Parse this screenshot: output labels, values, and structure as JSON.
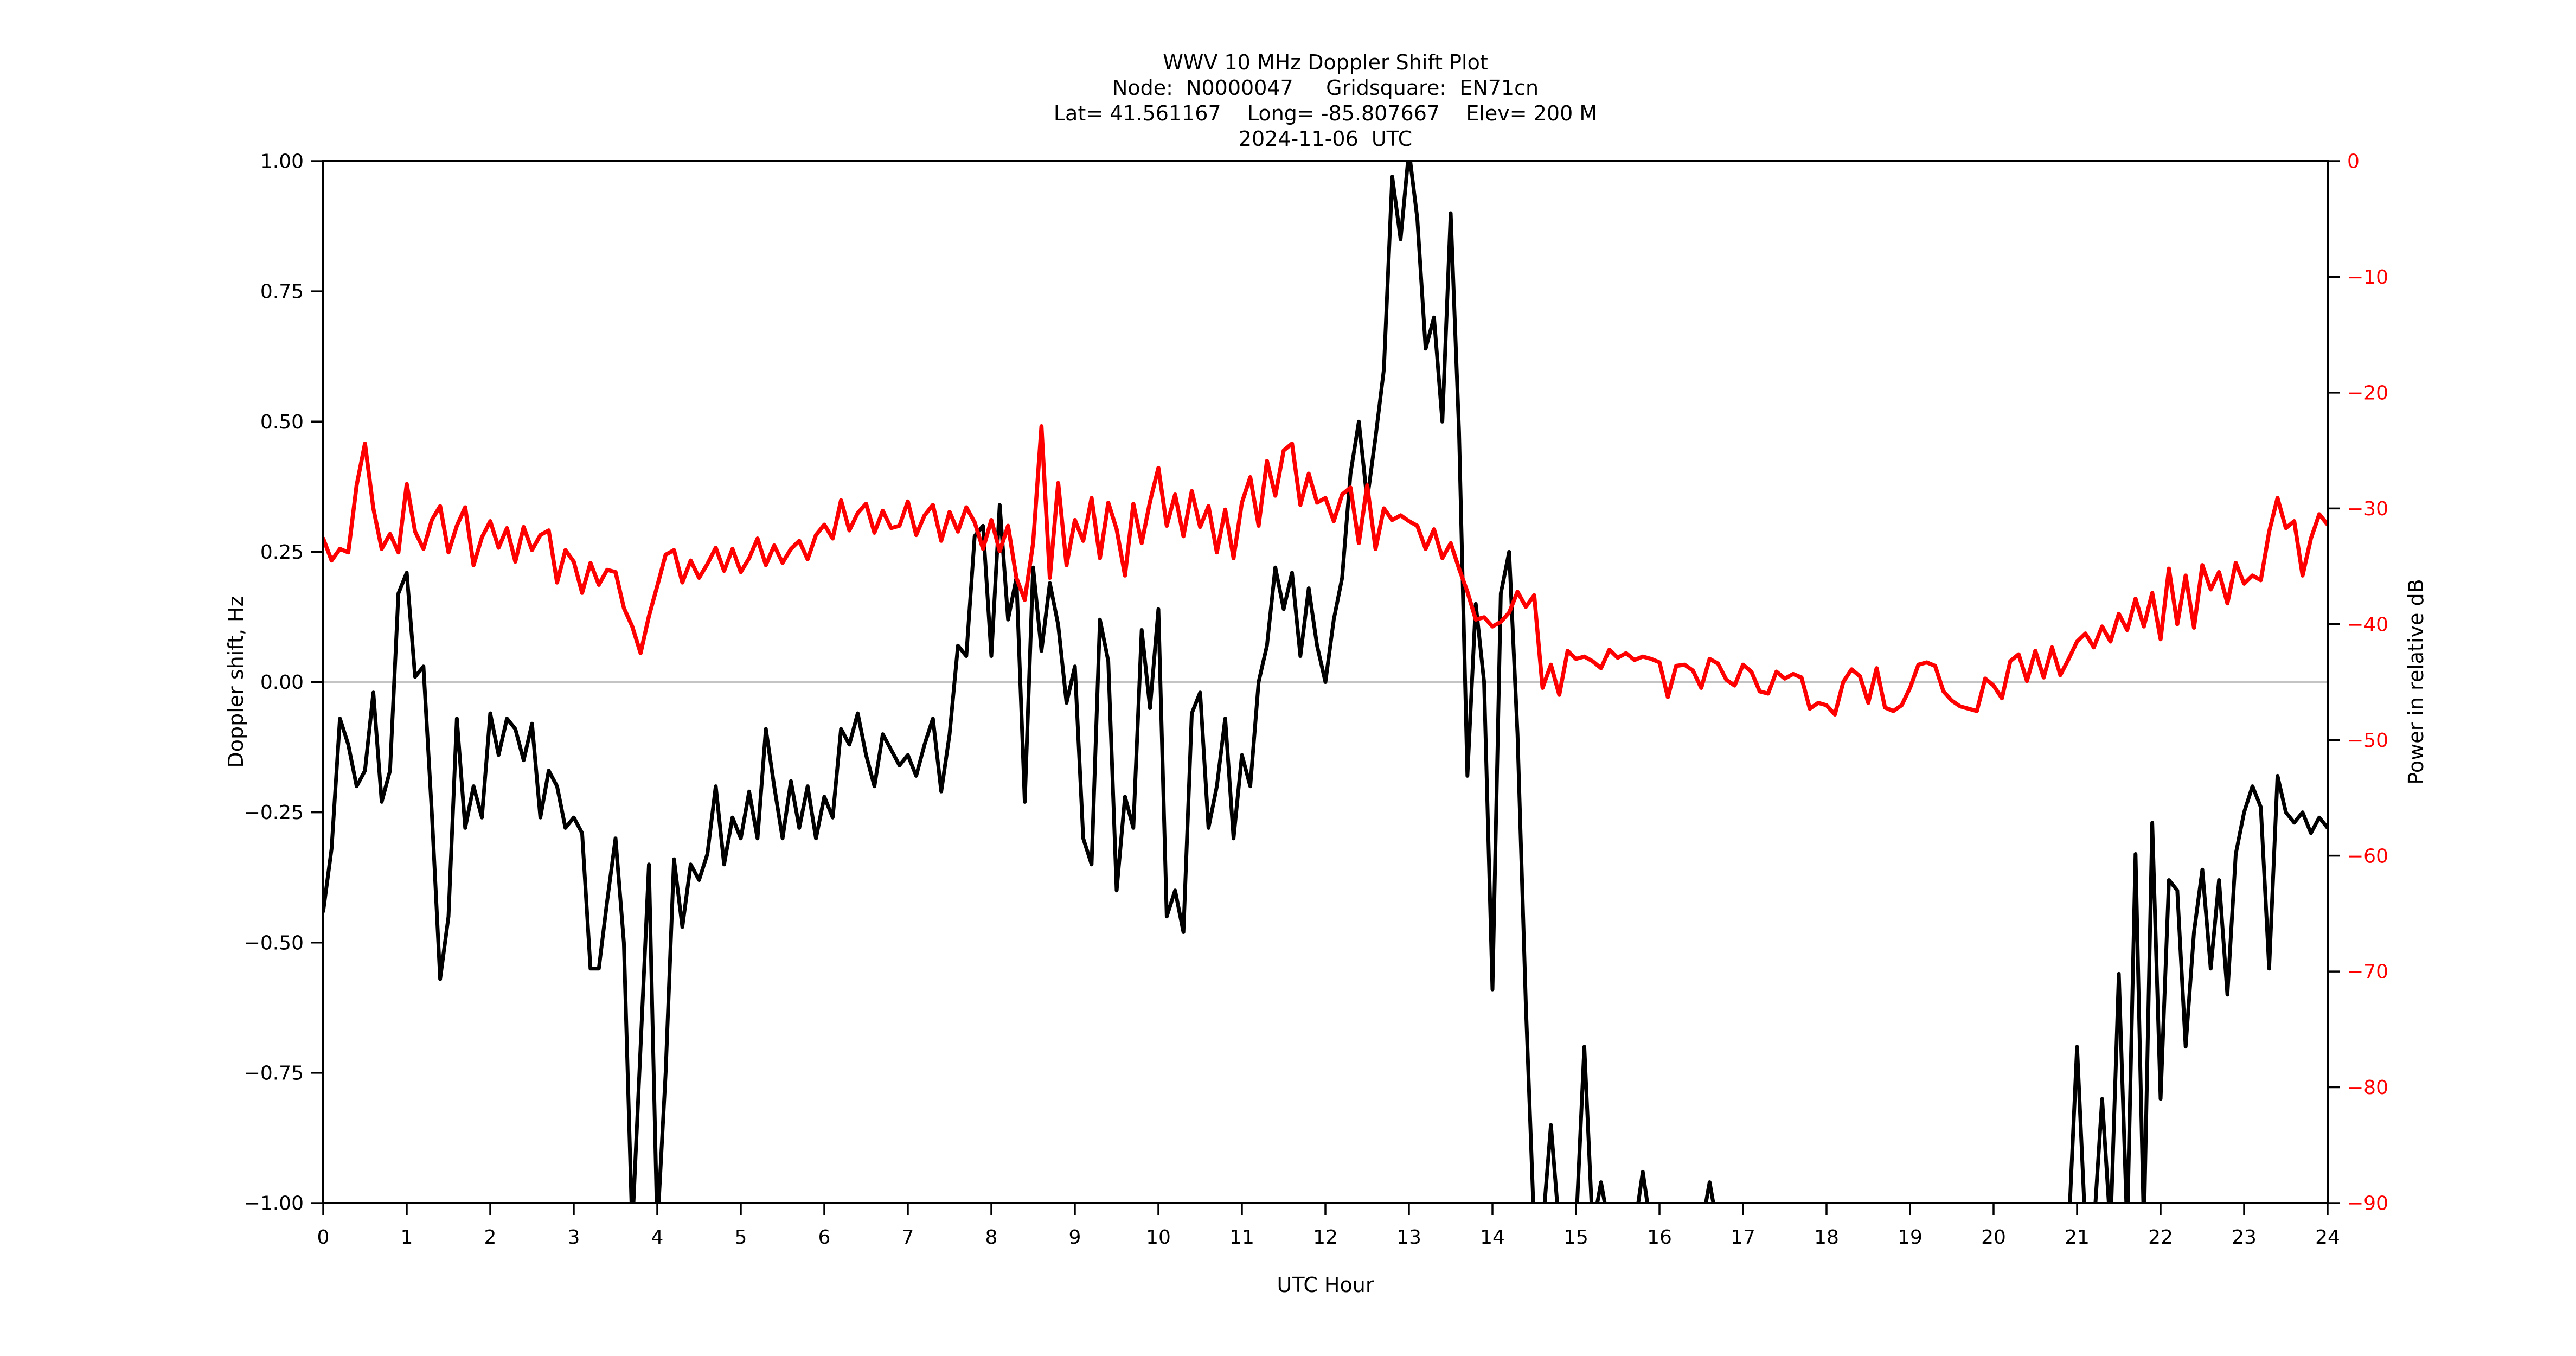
{
  "title": {
    "line1": "WWV 10 MHz Doppler Shift Plot",
    "line2": "Node:  N0000047     Gridsquare:  EN71cn",
    "line3": "Lat= 41.561167    Long= -85.807667    Elev= 200 M",
    "line4": "2024-11-06  UTC"
  },
  "colors": {
    "doppler_line": "#000000",
    "power_line": "#ff0000",
    "zero_gridline": "#b0b0b0",
    "frame": "#000000",
    "background": "#ffffff"
  },
  "chart_data": {
    "type": "line",
    "title": "WWV 10 MHz Doppler Shift Plot",
    "subtitle_node": "N0000047",
    "subtitle_gridsquare": "EN71cn",
    "subtitle_lat": "41.561167",
    "subtitle_long": "-85.807667",
    "subtitle_elev": "200 M",
    "date": "2024-11-06",
    "grid": "zero-line-only",
    "legend": "none",
    "x_axis": {
      "label": "UTC Hour",
      "range": [
        0,
        24
      ],
      "start": 0,
      "step": 0.1,
      "ticks": [
        0,
        1,
        2,
        3,
        4,
        5,
        6,
        7,
        8,
        9,
        10,
        11,
        12,
        13,
        14,
        15,
        16,
        17,
        18,
        19,
        20,
        21,
        22,
        23,
        24
      ],
      "tick_labels": [
        "0",
        "1",
        "2",
        "3",
        "4",
        "5",
        "6",
        "7",
        "8",
        "9",
        "10",
        "11",
        "12",
        "13",
        "14",
        "15",
        "16",
        "17",
        "18",
        "19",
        "20",
        "21",
        "22",
        "23",
        "24"
      ]
    },
    "y_left": {
      "label": "Doppler shift, Hz",
      "range": [
        -1.0,
        1.0
      ],
      "zero_gridline": true,
      "ticks": [
        1.0,
        0.75,
        0.5,
        0.25,
        0.0,
        -0.25,
        -0.5,
        -0.75,
        -1.0
      ],
      "tick_labels": [
        "1.00",
        "0.75",
        "0.50",
        "0.25",
        "0.00",
        "−0.25",
        "−0.50",
        "−0.75",
        "−1.00"
      ]
    },
    "y_right": {
      "label": "Power in relative dB",
      "color": "#ff0000",
      "range": [
        -90,
        0
      ],
      "ticks": [
        0,
        -10,
        -20,
        -30,
        -40,
        -50,
        -60,
        -70,
        -80,
        -90
      ],
      "tick_labels": [
        "0",
        "−10",
        "−20",
        "−30",
        "−40",
        "−50",
        "−60",
        "−70",
        "−80",
        "−90"
      ]
    },
    "series": [
      {
        "name": "doppler_shift_hz",
        "axis": "left",
        "color": "#000000",
        "values": [
          -0.44,
          -0.32,
          -0.07,
          -0.12,
          -0.2,
          -0.17,
          -0.02,
          -0.23,
          -0.17,
          0.17,
          0.21,
          0.01,
          0.03,
          -0.25,
          -0.57,
          -0.45,
          -0.07,
          -0.28,
          -0.2,
          -0.26,
          -0.06,
          -0.14,
          -0.07,
          -0.09,
          -0.15,
          -0.08,
          -0.26,
          -0.17,
          -0.2,
          -0.28,
          -0.26,
          -0.29,
          -0.55,
          -0.55,
          -0.42,
          -0.3,
          -0.5,
          -1.05,
          -0.7,
          -0.35,
          -1.05,
          -0.75,
          -0.34,
          -0.47,
          -0.35,
          -0.38,
          -0.33,
          -0.2,
          -0.35,
          -0.26,
          -0.3,
          -0.21,
          -0.3,
          -0.09,
          -0.2,
          -0.3,
          -0.19,
          -0.28,
          -0.2,
          -0.3,
          -0.22,
          -0.26,
          -0.09,
          -0.12,
          -0.06,
          -0.14,
          -0.2,
          -0.1,
          -0.13,
          -0.16,
          -0.14,
          -0.18,
          -0.12,
          -0.07,
          -0.21,
          -0.1,
          0.07,
          0.05,
          0.28,
          0.3,
          0.05,
          0.34,
          0.12,
          0.2,
          -0.23,
          0.22,
          0.06,
          0.19,
          0.11,
          -0.04,
          0.03,
          -0.3,
          -0.35,
          0.12,
          0.04,
          -0.4,
          -0.22,
          -0.28,
          0.1,
          -0.05,
          0.14,
          -0.45,
          -0.4,
          -0.48,
          -0.06,
          -0.02,
          -0.28,
          -0.2,
          -0.07,
          -0.3,
          -0.14,
          -0.2,
          0.0,
          0.07,
          0.22,
          0.14,
          0.21,
          0.05,
          0.18,
          0.07,
          0.0,
          0.12,
          0.2,
          0.4,
          0.5,
          0.35,
          0.47,
          0.6,
          0.97,
          0.85,
          1.02,
          0.89,
          0.64,
          0.7,
          0.5,
          0.9,
          0.48,
          -0.18,
          0.15,
          0.0,
          -0.59,
          0.17,
          0.25,
          -0.1,
          -0.62,
          -1.05,
          -1.05,
          -0.85,
          -1.05,
          -1.05,
          -1.05,
          -0.7,
          -1.05,
          -0.96,
          -1.05,
          -1.05,
          -1.05,
          -1.05,
          -0.94,
          -1.05,
          -1.05,
          -1.05,
          -1.05,
          -1.05,
          -1.05,
          -1.05,
          -0.96,
          -1.05,
          -1.05,
          -1.05,
          -1.05,
          -1.05,
          -1.05,
          -1.05,
          -1.05,
          -1.05,
          -1.05,
          -1.05,
          -1.05,
          -1.05,
          -1.05,
          -1.05,
          -1.05,
          -1.05,
          -1.05,
          -1.05,
          -1.05,
          -1.05,
          -1.05,
          -1.05,
          -1.05,
          -1.05,
          -1.05,
          -1.05,
          -1.05,
          -1.05,
          -1.05,
          -1.05,
          -1.05,
          -1.05,
          -1.05,
          -1.05,
          -1.05,
          -1.05,
          -1.05,
          -1.05,
          -1.05,
          -1.05,
          -1.05,
          -1.05,
          -0.7,
          -1.05,
          -1.05,
          -0.8,
          -1.05,
          -0.56,
          -1.05,
          -0.33,
          -1.05,
          -0.27,
          -0.8,
          -0.38,
          -0.4,
          -0.7,
          -0.48,
          -0.36,
          -0.55,
          -0.38,
          -0.6,
          -0.33,
          -0.25,
          -0.2,
          -0.24,
          -0.55,
          -0.18,
          -0.25,
          -0.27,
          -0.25,
          -0.29,
          -0.26,
          -0.28
        ]
      },
      {
        "name": "power_relative_db",
        "axis": "right",
        "color": "#ff0000",
        "values": [
          -32.6,
          -34.5,
          -33.5,
          -33.8,
          -28.0,
          -24.4,
          -30.0,
          -33.5,
          -32.2,
          -33.8,
          -27.9,
          -32.0,
          -33.5,
          -31.0,
          -29.8,
          -33.8,
          -31.5,
          -29.9,
          -34.9,
          -32.5,
          -31.1,
          -33.4,
          -31.7,
          -34.6,
          -31.6,
          -33.6,
          -32.3,
          -31.9,
          -36.4,
          -33.6,
          -34.6,
          -37.3,
          -34.7,
          -36.6,
          -35.3,
          -35.5,
          -38.6,
          -40.2,
          -42.5,
          -39.3,
          -36.7,
          -34.0,
          -33.6,
          -36.4,
          -34.5,
          -36.0,
          -34.8,
          -33.4,
          -35.4,
          -33.5,
          -35.5,
          -34.3,
          -32.6,
          -34.9,
          -33.2,
          -34.7,
          -33.5,
          -32.8,
          -34.4,
          -32.3,
          -31.4,
          -32.6,
          -29.3,
          -31.9,
          -30.4,
          -29.6,
          -32.1,
          -30.2,
          -31.7,
          -31.5,
          -29.4,
          -32.3,
          -30.6,
          -29.7,
          -32.8,
          -30.3,
          -32.0,
          -29.9,
          -31.2,
          -33.5,
          -31.0,
          -33.7,
          -31.5,
          -36.0,
          -37.9,
          -33.0,
          -22.9,
          -36.0,
          -27.8,
          -34.9,
          -31.0,
          -32.8,
          -29.1,
          -34.3,
          -29.5,
          -31.8,
          -35.8,
          -29.6,
          -33.0,
          -29.4,
          -26.5,
          -31.5,
          -28.8,
          -32.4,
          -28.5,
          -31.6,
          -29.8,
          -33.8,
          -30.1,
          -34.3,
          -29.5,
          -27.3,
          -31.5,
          -25.9,
          -28.9,
          -25.0,
          -24.4,
          -29.7,
          -27.0,
          -29.5,
          -29.1,
          -31.1,
          -28.8,
          -28.2,
          -33.0,
          -28.0,
          -33.5,
          -30.0,
          -31.0,
          -30.6,
          -31.1,
          -31.5,
          -33.5,
          -31.8,
          -34.3,
          -33.0,
          -35.2,
          -37.2,
          -39.6,
          -39.4,
          -40.2,
          -39.8,
          -39.0,
          -37.2,
          -38.5,
          -37.5,
          -45.5,
          -43.5,
          -46.1,
          -42.3,
          -43.0,
          -42.8,
          -43.2,
          -43.8,
          -42.2,
          -42.9,
          -42.5,
          -43.1,
          -42.8,
          -43.0,
          -43.3,
          -46.3,
          -43.6,
          -43.5,
          -44.0,
          -45.5,
          -43.0,
          -43.4,
          -44.8,
          -45.3,
          -43.5,
          -44.1,
          -45.8,
          -46.0,
          -44.1,
          -44.7,
          -44.3,
          -44.6,
          -47.3,
          -46.8,
          -47.0,
          -47.8,
          -45.0,
          -43.9,
          -44.5,
          -46.8,
          -43.8,
          -47.2,
          -47.5,
          -47.0,
          -45.5,
          -43.5,
          -43.3,
          -43.6,
          -45.8,
          -46.6,
          -47.1,
          -47.3,
          -47.5,
          -44.7,
          -45.3,
          -46.4,
          -43.2,
          -42.6,
          -44.9,
          -42.3,
          -44.6,
          -42.0,
          -44.4,
          -43.0,
          -41.5,
          -40.8,
          -42.0,
          -40.2,
          -41.5,
          -39.1,
          -40.5,
          -37.8,
          -40.2,
          -37.3,
          -41.3,
          -35.2,
          -40.0,
          -35.8,
          -40.3,
          -34.9,
          -37.0,
          -35.5,
          -38.2,
          -34.7,
          -36.5,
          -35.8,
          -36.2,
          -32.0,
          -29.1,
          -31.7,
          -31.1,
          -35.8,
          -32.6,
          -30.5,
          -31.4
        ]
      }
    ]
  }
}
